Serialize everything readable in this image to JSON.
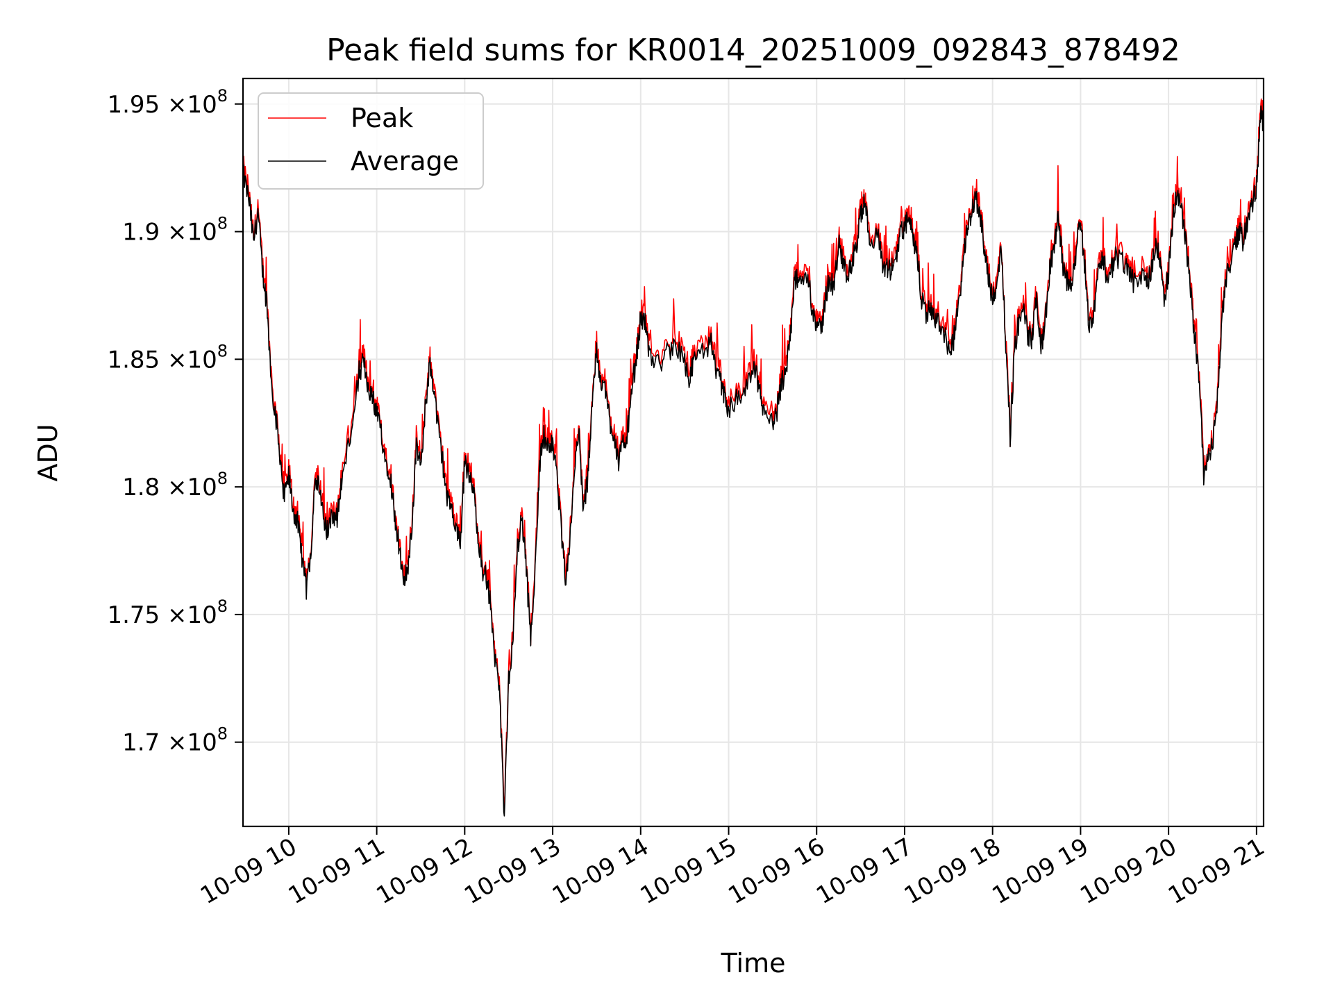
{
  "chart_data": {
    "type": "line",
    "title": "Peak field sums for KR0014_20251009_092843_878492",
    "xlabel": "Time",
    "ylabel": "ADU",
    "grid": true,
    "legend_position": "top-left",
    "x_unit": "hours since 2025-10-09 00:00",
    "xlim": [
      9.48,
      21.08
    ],
    "ylim": [
      166700000.0,
      196000000.0
    ],
    "x_ticks": [
      {
        "value": 10,
        "label": "10-09 10"
      },
      {
        "value": 11,
        "label": "10-09 11"
      },
      {
        "value": 12,
        "label": "10-09 12"
      },
      {
        "value": 13,
        "label": "10-09 13"
      },
      {
        "value": 14,
        "label": "10-09 14"
      },
      {
        "value": 15,
        "label": "10-09 15"
      },
      {
        "value": 16,
        "label": "10-09 16"
      },
      {
        "value": 17,
        "label": "10-09 17"
      },
      {
        "value": 18,
        "label": "10-09 18"
      },
      {
        "value": 19,
        "label": "10-09 19"
      },
      {
        "value": 20,
        "label": "10-09 20"
      },
      {
        "value": 21,
        "label": "10-09 21"
      }
    ],
    "y_ticks": [
      {
        "value": 170000000.0,
        "mantissa": "1.7",
        "times": "×",
        "base": "10",
        "exp": "8"
      },
      {
        "value": 175000000.0,
        "mantissa": "1.75",
        "times": "×",
        "base": "10",
        "exp": "8"
      },
      {
        "value": 180000000.0,
        "mantissa": "1.8",
        "times": "×",
        "base": "10",
        "exp": "8"
      },
      {
        "value": 185000000.0,
        "mantissa": "1.85",
        "times": "×",
        "base": "10",
        "exp": "8"
      },
      {
        "value": 190000000.0,
        "mantissa": "1.9",
        "times": "×",
        "base": "10",
        "exp": "8"
      },
      {
        "value": 195000000.0,
        "mantissa": "1.95",
        "times": "×",
        "base": "10",
        "exp": "8"
      }
    ],
    "series": [
      {
        "name": "Peak",
        "color": "#ff0000"
      },
      {
        "name": "Average",
        "color": "#000000"
      }
    ],
    "average_points": [
      [
        9.48,
        192.3
      ],
      [
        9.55,
        191.2
      ],
      [
        9.6,
        189.6
      ],
      [
        9.65,
        190.8
      ],
      [
        9.7,
        188.5
      ],
      [
        9.75,
        187.2
      ],
      [
        9.8,
        184.2
      ],
      [
        9.85,
        182.8
      ],
      [
        9.9,
        181.3
      ],
      [
        9.95,
        179.5
      ],
      [
        10.0,
        180.4
      ],
      [
        10.05,
        179.1
      ],
      [
        10.1,
        178.6
      ],
      [
        10.15,
        177.3
      ],
      [
        10.2,
        176.0
      ],
      [
        10.25,
        177.4
      ],
      [
        10.3,
        180.5
      ],
      [
        10.35,
        179.8
      ],
      [
        10.4,
        178.7
      ],
      [
        10.45,
        178.2
      ],
      [
        10.5,
        179.0
      ],
      [
        10.55,
        178.8
      ],
      [
        10.6,
        180.2
      ],
      [
        10.7,
        182.0
      ],
      [
        10.8,
        184.5
      ],
      [
        10.85,
        184.9
      ],
      [
        10.9,
        184.0
      ],
      [
        10.95,
        183.5
      ],
      [
        11.0,
        182.8
      ],
      [
        11.05,
        182.2
      ],
      [
        11.1,
        181.0
      ],
      [
        11.15,
        180.6
      ],
      [
        11.2,
        179.0
      ],
      [
        11.25,
        177.8
      ],
      [
        11.3,
        176.2
      ],
      [
        11.35,
        176.8
      ],
      [
        11.4,
        178.5
      ],
      [
        11.45,
        181.5
      ],
      [
        11.5,
        180.8
      ],
      [
        11.55,
        183.0
      ],
      [
        11.6,
        184.8
      ],
      [
        11.65,
        183.9
      ],
      [
        11.7,
        182.2
      ],
      [
        11.75,
        181.0
      ],
      [
        11.8,
        179.5
      ],
      [
        11.85,
        179.1
      ],
      [
        11.9,
        178.2
      ],
      [
        11.95,
        177.8
      ],
      [
        12.0,
        181.0
      ],
      [
        12.05,
        180.4
      ],
      [
        12.1,
        179.8
      ],
      [
        12.15,
        178.2
      ],
      [
        12.2,
        176.8
      ],
      [
        12.25,
        176.4
      ],
      [
        12.3,
        175.2
      ],
      [
        12.35,
        173.0
      ],
      [
        12.4,
        171.8
      ],
      [
        12.45,
        167.0
      ],
      [
        12.5,
        172.5
      ],
      [
        12.55,
        174.0
      ],
      [
        12.6,
        177.6
      ],
      [
        12.65,
        178.8
      ],
      [
        12.7,
        176.8
      ],
      [
        12.75,
        174.0
      ],
      [
        12.8,
        176.9
      ],
      [
        12.85,
        180.8
      ],
      [
        12.9,
        182.0
      ],
      [
        12.95,
        181.6
      ],
      [
        13.0,
        181.9
      ],
      [
        13.05,
        180.2
      ],
      [
        13.1,
        178.2
      ],
      [
        13.15,
        176.0
      ],
      [
        13.2,
        178.2
      ],
      [
        13.25,
        180.9
      ],
      [
        13.3,
        182.0
      ],
      [
        13.35,
        179.0
      ],
      [
        13.4,
        180.4
      ],
      [
        13.45,
        183.5
      ],
      [
        13.5,
        185.2
      ],
      [
        13.55,
        184.2
      ],
      [
        13.6,
        183.8
      ],
      [
        13.65,
        182.6
      ],
      [
        13.7,
        182.0
      ],
      [
        13.75,
        181.0
      ],
      [
        13.8,
        181.6
      ],
      [
        13.85,
        182.2
      ],
      [
        13.9,
        183.8
      ],
      [
        13.95,
        185.0
      ],
      [
        14.0,
        186.6
      ],
      [
        14.05,
        186.4
      ],
      [
        14.1,
        185.1
      ],
      [
        14.2,
        184.8
      ],
      [
        14.3,
        185.2
      ],
      [
        14.4,
        185.6
      ],
      [
        14.5,
        184.9
      ],
      [
        14.55,
        184.3
      ],
      [
        14.6,
        184.8
      ],
      [
        14.7,
        185.3
      ],
      [
        14.8,
        185.6
      ],
      [
        14.85,
        184.5
      ],
      [
        14.9,
        184.2
      ],
      [
        14.95,
        183.5
      ],
      [
        15.0,
        183.0
      ],
      [
        15.1,
        183.6
      ],
      [
        15.2,
        183.8
      ],
      [
        15.3,
        184.6
      ],
      [
        15.35,
        183.8
      ],
      [
        15.4,
        182.8
      ],
      [
        15.5,
        182.6
      ],
      [
        15.55,
        183.0
      ],
      [
        15.6,
        184.0
      ],
      [
        15.65,
        184.6
      ],
      [
        15.7,
        185.6
      ],
      [
        15.75,
        188.2
      ],
      [
        15.8,
        188.0
      ],
      [
        15.9,
        188.4
      ],
      [
        15.95,
        187.0
      ],
      [
        16.0,
        186.4
      ],
      [
        16.05,
        186.0
      ],
      [
        16.1,
        187.4
      ],
      [
        16.15,
        188.2
      ],
      [
        16.2,
        187.8
      ],
      [
        16.25,
        189.6
      ],
      [
        16.3,
        188.8
      ],
      [
        16.35,
        188.3
      ],
      [
        16.4,
        188.7
      ],
      [
        16.45,
        189.4
      ],
      [
        16.5,
        190.6
      ],
      [
        16.55,
        191.2
      ],
      [
        16.6,
        189.8
      ],
      [
        16.7,
        189.8
      ],
      [
        16.75,
        188.6
      ],
      [
        16.8,
        188.6
      ],
      [
        16.85,
        188.5
      ],
      [
        16.9,
        189.0
      ],
      [
        16.95,
        189.9
      ],
      [
        17.0,
        190.2
      ],
      [
        17.05,
        190.5
      ],
      [
        17.1,
        189.6
      ],
      [
        17.15,
        188.8
      ],
      [
        17.2,
        187.2
      ],
      [
        17.25,
        186.8
      ],
      [
        17.3,
        187.0
      ],
      [
        17.35,
        186.4
      ],
      [
        17.4,
        186.5
      ],
      [
        17.5,
        185.5
      ],
      [
        17.55,
        185.6
      ],
      [
        17.6,
        186.8
      ],
      [
        17.65,
        188.3
      ],
      [
        17.7,
        189.9
      ],
      [
        17.75,
        190.4
      ],
      [
        17.8,
        191.4
      ],
      [
        17.85,
        190.8
      ],
      [
        17.9,
        189.6
      ],
      [
        17.95,
        188.3
      ],
      [
        18.0,
        187.4
      ],
      [
        18.05,
        188.0
      ],
      [
        18.1,
        189.5
      ],
      [
        18.15,
        185.5
      ],
      [
        18.2,
        182.0
      ],
      [
        18.25,
        185.4
      ],
      [
        18.3,
        186.5
      ],
      [
        18.35,
        186.9
      ],
      [
        18.4,
        186.0
      ],
      [
        18.45,
        185.8
      ],
      [
        18.5,
        187.5
      ],
      [
        18.55,
        185.4
      ],
      [
        18.6,
        186.5
      ],
      [
        18.65,
        188.5
      ],
      [
        18.7,
        189.4
      ],
      [
        18.75,
        190.6
      ],
      [
        18.8,
        188.6
      ],
      [
        18.85,
        188.0
      ],
      [
        18.9,
        187.8
      ],
      [
        18.95,
        189.3
      ],
      [
        19.0,
        190.5
      ],
      [
        19.05,
        188.5
      ],
      [
        19.1,
        186.2
      ],
      [
        19.15,
        186.8
      ],
      [
        19.2,
        188.6
      ],
      [
        19.25,
        189.1
      ],
      [
        19.3,
        188.2
      ],
      [
        19.35,
        188.5
      ],
      [
        19.4,
        189.0
      ],
      [
        19.5,
        188.8
      ],
      [
        19.55,
        188.5
      ],
      [
        19.6,
        188.0
      ],
      [
        19.7,
        188.4
      ],
      [
        19.75,
        188.0
      ],
      [
        19.8,
        188.4
      ],
      [
        19.85,
        189.6
      ],
      [
        19.9,
        189.0
      ],
      [
        19.95,
        187.2
      ],
      [
        20.0,
        188.4
      ],
      [
        20.05,
        190.5
      ],
      [
        20.1,
        191.5
      ],
      [
        20.15,
        190.9
      ],
      [
        20.2,
        189.5
      ],
      [
        20.25,
        187.6
      ],
      [
        20.3,
        185.8
      ],
      [
        20.35,
        184.3
      ],
      [
        20.4,
        180.5
      ],
      [
        20.45,
        181.0
      ],
      [
        20.5,
        181.6
      ],
      [
        20.55,
        183.2
      ],
      [
        20.6,
        186.2
      ],
      [
        20.65,
        188.2
      ],
      [
        20.7,
        188.8
      ],
      [
        20.75,
        189.5
      ],
      [
        20.8,
        190.0
      ],
      [
        20.85,
        189.6
      ],
      [
        20.9,
        190.5
      ],
      [
        20.95,
        191.0
      ],
      [
        21.0,
        191.8
      ],
      [
        21.05,
        194.8
      ],
      [
        21.08,
        193.8
      ]
    ]
  }
}
